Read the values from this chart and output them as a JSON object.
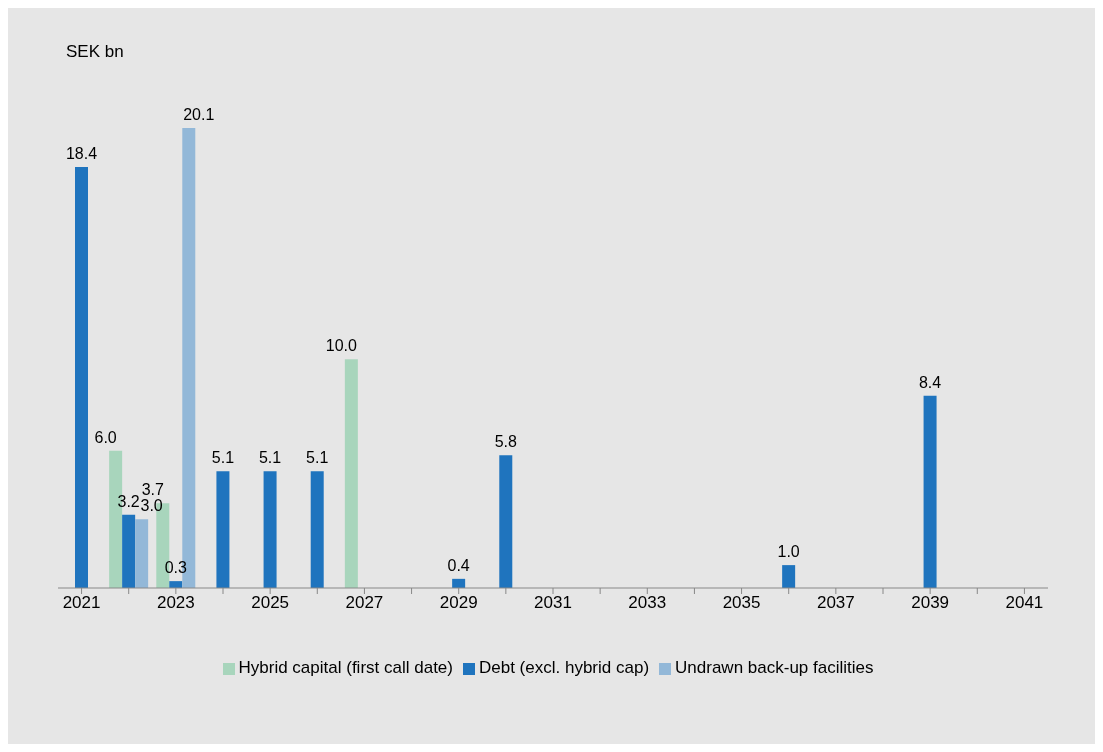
{
  "chart_data": {
    "type": "bar",
    "ylabel": "SEK bn",
    "categories": [
      "2021",
      null,
      "2023",
      null,
      "2025",
      null,
      "2027",
      null,
      "2029",
      null,
      "2031",
      null,
      "2033",
      null,
      "2035",
      null,
      "2037",
      null,
      "2039",
      null,
      "2041"
    ],
    "series": [
      {
        "name": "Hybrid capital (first call date)",
        "color": "#a8d5bc",
        "values": [
          null,
          6.0,
          3.7,
          null,
          null,
          null,
          10.0,
          null,
          null,
          null,
          null,
          null,
          null,
          null,
          null,
          null,
          null,
          null,
          null,
          null,
          null
        ],
        "value_labels": [
          null,
          "6.0",
          "3.7",
          null,
          null,
          null,
          "10.0",
          null,
          null,
          null,
          null,
          null,
          null,
          null,
          null,
          null,
          null,
          null,
          null,
          null,
          null
        ]
      },
      {
        "name": "Debt (excl. hybrid cap)",
        "color": "#1f74be",
        "values": [
          18.4,
          3.2,
          0.3,
          5.1,
          5.1,
          5.1,
          null,
          null,
          0.4,
          5.8,
          null,
          null,
          null,
          null,
          null,
          1.0,
          null,
          null,
          8.4,
          null,
          null
        ],
        "value_labels": [
          "18.4",
          "3.2",
          "0.3",
          "5.1",
          "5.1",
          "5.1",
          null,
          null,
          "0.4",
          "5.8",
          null,
          null,
          null,
          null,
          null,
          "1.0",
          null,
          null,
          "8.4",
          null,
          null
        ]
      },
      {
        "name": "Undrawn back-up facilities",
        "color": "#93b8d8",
        "values": [
          null,
          3.0,
          20.1,
          null,
          null,
          null,
          null,
          null,
          null,
          null,
          null,
          null,
          null,
          null,
          null,
          null,
          null,
          null,
          null,
          null,
          null
        ],
        "value_labels": [
          null,
          "3.0",
          "20.1",
          null,
          null,
          null,
          null,
          null,
          null,
          null,
          null,
          null,
          null,
          null,
          null,
          null,
          null,
          null,
          null,
          null,
          null
        ]
      }
    ],
    "grid": false,
    "legend": "bottom"
  }
}
